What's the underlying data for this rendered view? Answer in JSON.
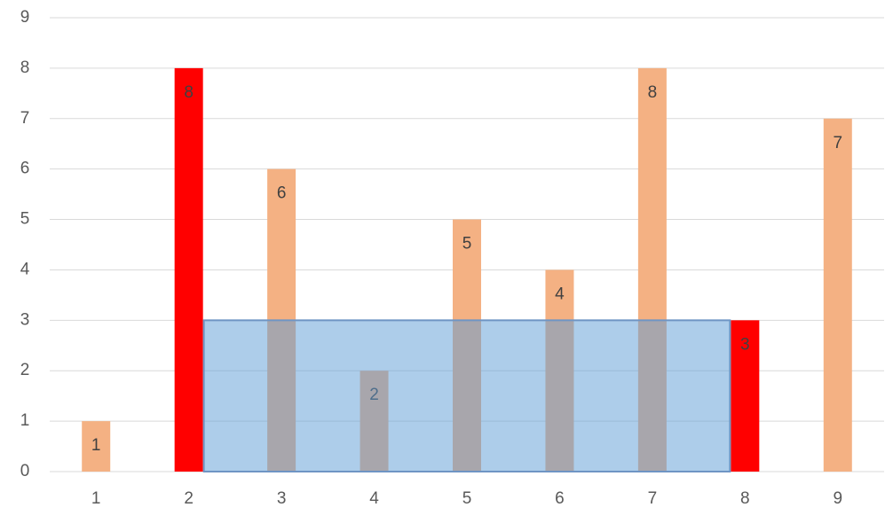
{
  "chart_data": {
    "type": "bar",
    "categories": [
      "1",
      "2",
      "3",
      "4",
      "5",
      "6",
      "7",
      "8",
      "9"
    ],
    "values": [
      1,
      8,
      6,
      2,
      5,
      4,
      8,
      3,
      7
    ],
    "colors": [
      "#f4b183",
      "#ff0000",
      "#f4b183",
      "#f4b183",
      "#f4b183",
      "#f4b183",
      "#f4b183",
      "#ff0000",
      "#f4b183"
    ],
    "ylim": [
      0,
      9
    ],
    "yticks": [
      0,
      1,
      2,
      3,
      4,
      5,
      6,
      7,
      8,
      9
    ],
    "grid": true
  }
}
